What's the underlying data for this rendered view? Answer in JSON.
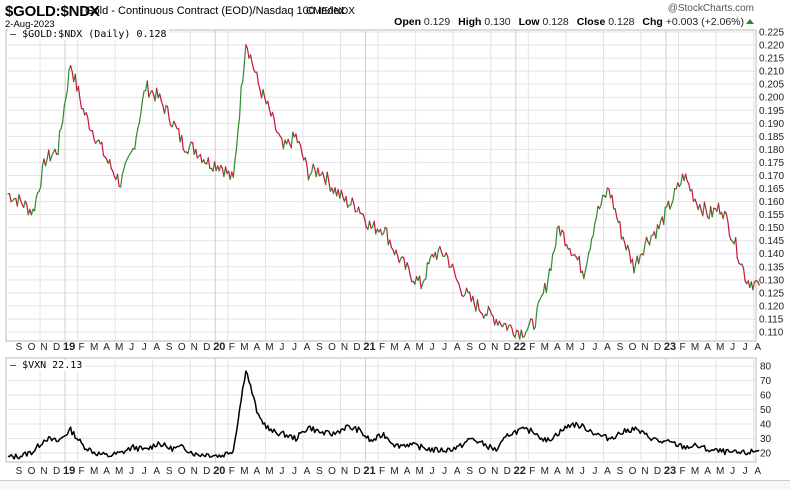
{
  "header": {
    "symbol": "$GOLD:$NDX",
    "description": "Gold - Continuous Contract (EOD)/Nasdaq 100 Index",
    "exchange": "CME/INDX",
    "date": "2-Aug-2023",
    "brand": "@StockCharts.com",
    "ohlc": {
      "open_label": "Open",
      "open": "0.129",
      "high_label": "High",
      "high": "0.130",
      "low_label": "Low",
      "low": "0.128",
      "close_label": "Close",
      "close": "0.128",
      "chg_label": "Chg",
      "chg": "+0.003 (+2.06%)"
    }
  },
  "colors": {
    "up": "#2e8b2e",
    "down": "#c8143c",
    "grid": "#e3e3e3",
    "vxn_line": "#000000",
    "axis_text": "#222222"
  },
  "main_panel": {
    "legend": "$GOLD:$NDX (Daily) 0.128"
  },
  "lower_panel": {
    "legend": "$VXN 22.13"
  },
  "chart_data": [
    {
      "type": "line",
      "title": "$GOLD:$NDX (Daily)",
      "xlabel": "",
      "ylabel": "",
      "ylim": [
        0.105,
        0.227
      ],
      "grid": true,
      "legend_position": "top-left",
      "y_ticks": [
        "0.225",
        "0.220",
        "0.215",
        "0.210",
        "0.205",
        "0.200",
        "0.195",
        "0.190",
        "0.185",
        "0.180",
        "0.175",
        "0.170",
        "0.165",
        "0.160",
        "0.155",
        "0.150",
        "0.145",
        "0.140",
        "0.135",
        "0.130",
        "0.125",
        "0.120",
        "0.115",
        "0.110"
      ],
      "x_ticks": [
        "S",
        "O",
        "N",
        "D",
        "19",
        "F",
        "M",
        "A",
        "M",
        "J",
        "J",
        "A",
        "S",
        "O",
        "N",
        "D",
        "20",
        "F",
        "M",
        "A",
        "M",
        "J",
        "J",
        "A",
        "S",
        "O",
        "N",
        "D",
        "21",
        "F",
        "M",
        "A",
        "M",
        "J",
        "J",
        "A",
        "S",
        "O",
        "N",
        "D",
        "22",
        "F",
        "M",
        "A",
        "M",
        "J",
        "J",
        "A",
        "S",
        "O",
        "N",
        "D",
        "23",
        "F",
        "M",
        "A",
        "M",
        "J",
        "J",
        "A"
      ],
      "x": [
        "2018-08",
        "2018-09",
        "2018-10",
        "2018-11",
        "2018-12",
        "2019-01",
        "2019-02",
        "2019-03",
        "2019-04",
        "2019-05",
        "2019-06",
        "2019-07",
        "2019-08",
        "2019-09",
        "2019-10",
        "2019-11",
        "2019-12",
        "2020-01",
        "2020-02",
        "2020-03",
        "2020-04",
        "2020-05",
        "2020-06",
        "2020-07",
        "2020-08",
        "2020-09",
        "2020-10",
        "2020-11",
        "2020-12",
        "2021-01",
        "2021-02",
        "2021-03",
        "2021-04",
        "2021-05",
        "2021-06",
        "2021-07",
        "2021-08",
        "2021-09",
        "2021-10",
        "2021-11",
        "2021-12",
        "2022-01",
        "2022-02",
        "2022-03",
        "2022-04",
        "2022-05",
        "2022-06",
        "2022-07",
        "2022-08",
        "2022-09",
        "2022-10",
        "2022-11",
        "2022-12",
        "2023-01",
        "2023-02",
        "2023-03",
        "2023-04",
        "2023-05",
        "2023-06",
        "2023-07",
        "2023-08"
      ],
      "series": [
        {
          "name": "$GOLD:$NDX",
          "values": [
            0.163,
            0.16,
            0.156,
            0.176,
            0.18,
            0.213,
            0.195,
            0.185,
            0.175,
            0.167,
            0.18,
            0.204,
            0.2,
            0.192,
            0.182,
            0.18,
            0.175,
            0.174,
            0.168,
            0.222,
            0.205,
            0.193,
            0.18,
            0.185,
            0.171,
            0.172,
            0.165,
            0.16,
            0.158,
            0.15,
            0.15,
            0.14,
            0.133,
            0.128,
            0.14,
            0.14,
            0.128,
            0.122,
            0.118,
            0.115,
            0.112,
            0.11,
            0.113,
            0.128,
            0.15,
            0.142,
            0.133,
            0.155,
            0.165,
            0.148,
            0.135,
            0.145,
            0.15,
            0.16,
            0.17,
            0.16,
            0.155,
            0.158,
            0.145,
            0.13,
            0.128
          ]
        }
      ]
    },
    {
      "type": "line",
      "title": "$VXN",
      "xlabel": "",
      "ylabel": "",
      "ylim": [
        14,
        82
      ],
      "grid": true,
      "legend_position": "top-left",
      "y_ticks": [
        "80",
        "70",
        "60",
        "50",
        "40",
        "30",
        "20"
      ],
      "x_ticks": [
        "S",
        "O",
        "N",
        "D",
        "19",
        "F",
        "M",
        "A",
        "M",
        "J",
        "J",
        "A",
        "S",
        "O",
        "N",
        "D",
        "20",
        "F",
        "M",
        "A",
        "M",
        "J",
        "J",
        "A",
        "S",
        "O",
        "N",
        "D",
        "21",
        "F",
        "M",
        "A",
        "M",
        "J",
        "J",
        "A",
        "S",
        "O",
        "N",
        "D",
        "22",
        "F",
        "M",
        "A",
        "M",
        "J",
        "J",
        "A",
        "S",
        "O",
        "N",
        "D",
        "23",
        "F",
        "M",
        "A",
        "M",
        "J",
        "J",
        "A"
      ],
      "x": [
        "2018-08",
        "2018-09",
        "2018-10",
        "2018-11",
        "2018-12",
        "2019-01",
        "2019-02",
        "2019-03",
        "2019-04",
        "2019-05",
        "2019-06",
        "2019-07",
        "2019-08",
        "2019-09",
        "2019-10",
        "2019-11",
        "2019-12",
        "2020-01",
        "2020-02",
        "2020-03",
        "2020-04",
        "2020-05",
        "2020-06",
        "2020-07",
        "2020-08",
        "2020-09",
        "2020-10",
        "2020-11",
        "2020-12",
        "2021-01",
        "2021-02",
        "2021-03",
        "2021-04",
        "2021-05",
        "2021-06",
        "2021-07",
        "2021-08",
        "2021-09",
        "2021-10",
        "2021-11",
        "2021-12",
        "2022-01",
        "2022-02",
        "2022-03",
        "2022-04",
        "2022-05",
        "2022-06",
        "2022-07",
        "2022-08",
        "2022-09",
        "2022-10",
        "2022-11",
        "2022-12",
        "2023-01",
        "2023-02",
        "2023-03",
        "2023-04",
        "2023-05",
        "2023-06",
        "2023-07",
        "2023-08"
      ],
      "series": [
        {
          "name": "$VXN",
          "values": [
            17,
            18,
            21,
            30,
            28,
            36,
            25,
            20,
            18,
            20,
            24,
            22,
            27,
            23,
            24,
            19,
            19,
            18,
            22,
            78,
            45,
            35,
            33,
            30,
            38,
            34,
            33,
            38,
            36,
            28,
            33,
            25,
            26,
            24,
            22,
            22,
            24,
            30,
            26,
            22,
            33,
            36,
            35,
            28,
            34,
            40,
            38,
            33,
            30,
            34,
            37,
            32,
            28,
            27,
            24,
            25,
            22,
            21,
            20,
            20,
            22
          ]
        }
      ]
    }
  ]
}
